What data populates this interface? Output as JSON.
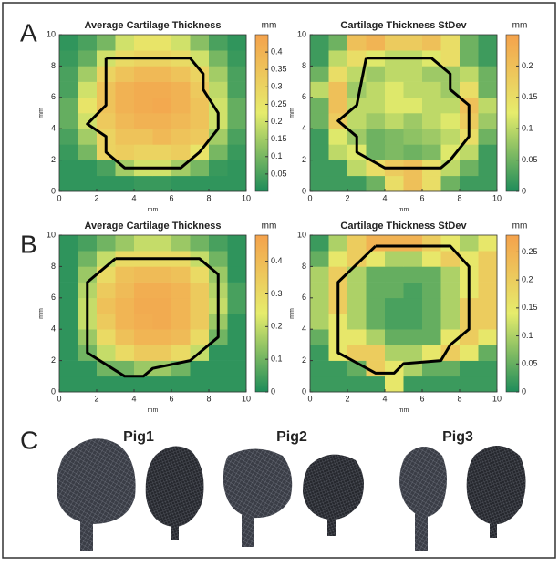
{
  "panel_labels": [
    "A",
    "B",
    "C"
  ],
  "chart_data": [
    {
      "type": "heatmap",
      "title": "Average Cartilage Thickness",
      "xlabel": "mm",
      "ylabel": "mm",
      "xlim": [
        0,
        10
      ],
      "ylim": [
        0,
        10
      ],
      "xticks": [
        0,
        2,
        4,
        6,
        8,
        10
      ],
      "yticks": [
        0,
        2,
        4,
        6,
        8,
        10
      ],
      "colormap": [
        "#1e8c5a",
        "#e6ec6c",
        "#f4a24c"
      ],
      "colorbar": {
        "label": "mm",
        "lim": [
          0,
          0.45
        ],
        "ticks": [
          0.05,
          0.1,
          0.15,
          0.2,
          0.25,
          0.3,
          0.35,
          0.4
        ]
      },
      "z": [
        [
          0.02,
          0.02,
          0.02,
          0.02,
          0.03,
          0.03,
          0.02,
          0.02,
          0.02,
          0.02
        ],
        [
          0.02,
          0.02,
          0.05,
          0.15,
          0.2,
          0.2,
          0.15,
          0.1,
          0.03,
          0.02
        ],
        [
          0.03,
          0.1,
          0.3,
          0.32,
          0.3,
          0.3,
          0.32,
          0.25,
          0.1,
          0.03
        ],
        [
          0.05,
          0.15,
          0.3,
          0.35,
          0.35,
          0.38,
          0.35,
          0.33,
          0.15,
          0.05
        ],
        [
          0.08,
          0.2,
          0.33,
          0.38,
          0.4,
          0.4,
          0.38,
          0.35,
          0.2,
          0.08
        ],
        [
          0.08,
          0.25,
          0.35,
          0.4,
          0.42,
          0.43,
          0.4,
          0.35,
          0.2,
          0.08
        ],
        [
          0.05,
          0.2,
          0.35,
          0.4,
          0.42,
          0.42,
          0.4,
          0.33,
          0.18,
          0.05
        ],
        [
          0.05,
          0.15,
          0.3,
          0.35,
          0.38,
          0.38,
          0.35,
          0.3,
          0.15,
          0.05
        ],
        [
          0.03,
          0.08,
          0.2,
          0.28,
          0.3,
          0.3,
          0.28,
          0.2,
          0.1,
          0.03
        ],
        [
          0.02,
          0.05,
          0.1,
          0.2,
          0.25,
          0.25,
          0.2,
          0.12,
          0.05,
          0.02
        ]
      ],
      "contour": {
        "color": "#000000",
        "x": [
          2.5,
          7,
          7.7,
          7.7,
          8.5,
          8.5,
          7.5,
          6.5,
          3.5,
          2.5,
          2.5,
          1.5,
          2.5,
          2.5
        ],
        "y": [
          8.5,
          8.5,
          7.5,
          6.5,
          5,
          4,
          2.5,
          1.5,
          1.5,
          2.5,
          3.5,
          4.3,
          5.5,
          8.5
        ]
      }
    },
    {
      "type": "heatmap",
      "title": "Cartilage Thickness StDev",
      "xlabel": "mm",
      "ylabel": "mm",
      "xlim": [
        0,
        10
      ],
      "ylim": [
        0,
        10
      ],
      "xticks": [
        0,
        2,
        4,
        6,
        8,
        10
      ],
      "yticks": [
        0,
        2,
        4,
        6,
        8,
        10
      ],
      "colormap": [
        "#1e8c5a",
        "#e6ec6c",
        "#f4a24c"
      ],
      "colorbar": {
        "label": "mm",
        "lim": [
          0,
          0.25
        ],
        "ticks": [
          0,
          0.05,
          0.1,
          0.15,
          0.2
        ]
      },
      "z": [
        [
          0.02,
          0.02,
          0.02,
          0.05,
          0.15,
          0.2,
          0.15,
          0.05,
          0.02,
          0.02
        ],
        [
          0.02,
          0.02,
          0.1,
          0.15,
          0.18,
          0.2,
          0.15,
          0.1,
          0.05,
          0.02
        ],
        [
          0.02,
          0.1,
          0.12,
          0.05,
          0.06,
          0.05,
          0.06,
          0.12,
          0.1,
          0.02
        ],
        [
          0.02,
          0.12,
          0.08,
          0.05,
          0.06,
          0.07,
          0.08,
          0.1,
          0.15,
          0.05
        ],
        [
          0.05,
          0.18,
          0.1,
          0.08,
          0.1,
          0.08,
          0.1,
          0.12,
          0.18,
          0.08
        ],
        [
          0.05,
          0.2,
          0.1,
          0.1,
          0.12,
          0.12,
          0.1,
          0.1,
          0.2,
          0.1
        ],
        [
          0.1,
          0.2,
          0.08,
          0.1,
          0.12,
          0.1,
          0.1,
          0.08,
          0.15,
          0.05
        ],
        [
          0.05,
          0.15,
          0.1,
          0.08,
          0.1,
          0.1,
          0.08,
          0.08,
          0.1,
          0.05
        ],
        [
          0.02,
          0.1,
          0.15,
          0.12,
          0.1,
          0.1,
          0.12,
          0.15,
          0.05,
          0.02
        ],
        [
          0.02,
          0.05,
          0.2,
          0.22,
          0.18,
          0.18,
          0.2,
          0.15,
          0.05,
          0.02
        ]
      ],
      "contour": {
        "color": "#000000",
        "x": [
          3,
          6.5,
          7.5,
          7.5,
          8.5,
          8.5,
          7.5,
          7,
          4,
          2.5,
          2.5,
          1.5,
          2.5,
          3
        ],
        "y": [
          8.5,
          8.5,
          7.5,
          6.5,
          5.5,
          3.5,
          2,
          1.5,
          1.5,
          2.5,
          3.5,
          4.5,
          5.5,
          8.5
        ]
      }
    },
    {
      "type": "heatmap",
      "title": "Average Cartilage Thickness",
      "xlabel": "mm",
      "ylabel": "mm",
      "xlim": [
        0,
        10
      ],
      "ylim": [
        0,
        10
      ],
      "xticks": [
        0,
        2,
        4,
        6,
        8,
        10
      ],
      "yticks": [
        0,
        2,
        4,
        6,
        8,
        10
      ],
      "colormap": [
        "#1e8c5a",
        "#e6ec6c",
        "#f4a24c"
      ],
      "colorbar": {
        "label": "mm",
        "lim": [
          0,
          0.48
        ],
        "ticks": [
          0,
          0.1,
          0.2,
          0.3,
          0.4
        ]
      },
      "z": [
        [
          0.02,
          0.02,
          0.02,
          0.02,
          0.02,
          0.02,
          0.02,
          0.02,
          0.02,
          0.02
        ],
        [
          0.02,
          0.02,
          0.1,
          0.1,
          0.15,
          0.15,
          0.1,
          0.02,
          0.02,
          0.02
        ],
        [
          0.02,
          0.1,
          0.2,
          0.3,
          0.35,
          0.35,
          0.3,
          0.2,
          0.02,
          0.02
        ],
        [
          0.02,
          0.15,
          0.3,
          0.38,
          0.42,
          0.42,
          0.4,
          0.3,
          0.1,
          0.02
        ],
        [
          0.02,
          0.2,
          0.35,
          0.42,
          0.44,
          0.45,
          0.42,
          0.35,
          0.15,
          0.02
        ],
        [
          0.02,
          0.2,
          0.38,
          0.42,
          0.45,
          0.45,
          0.42,
          0.35,
          0.2,
          0.05
        ],
        [
          0.02,
          0.18,
          0.35,
          0.4,
          0.44,
          0.44,
          0.42,
          0.35,
          0.18,
          0.05
        ],
        [
          0.02,
          0.15,
          0.3,
          0.38,
          0.4,
          0.4,
          0.38,
          0.3,
          0.15,
          0.02
        ],
        [
          0.02,
          0.1,
          0.2,
          0.3,
          0.3,
          0.3,
          0.3,
          0.2,
          0.1,
          0.02
        ],
        [
          0.02,
          0.05,
          0.1,
          0.15,
          0.2,
          0.2,
          0.15,
          0.1,
          0.05,
          0.02
        ]
      ],
      "contour": {
        "color": "#000000",
        "x": [
          3,
          7.5,
          8.5,
          8.5,
          7.5,
          7,
          5,
          4.5,
          3.5,
          1.5,
          1.5,
          3
        ],
        "y": [
          8.5,
          8.5,
          7.5,
          3.5,
          2.5,
          2,
          1.5,
          1,
          1,
          2.5,
          7,
          8.5
        ]
      }
    },
    {
      "type": "heatmap",
      "title": "Cartilage Thickness StDev",
      "xlabel": "mm",
      "ylabel": "mm",
      "xlim": [
        0,
        10
      ],
      "ylim": [
        0,
        10
      ],
      "xticks": [
        0,
        2,
        4,
        6,
        8,
        10
      ],
      "yticks": [
        0,
        2,
        4,
        6,
        8,
        10
      ],
      "colormap": [
        "#1e8c5a",
        "#e6ec6c",
        "#f4a24c"
      ],
      "colorbar": {
        "label": "mm",
        "lim": [
          0,
          0.28
        ],
        "ticks": [
          0,
          0.05,
          0.1,
          0.15,
          0.2,
          0.25
        ]
      },
      "z": [
        [
          0.02,
          0.02,
          0.02,
          0.02,
          0.15,
          0.02,
          0.02,
          0.02,
          0.02,
          0.02
        ],
        [
          0.02,
          0.02,
          0.05,
          0.2,
          0.15,
          0.1,
          0.05,
          0.05,
          0.02,
          0.02
        ],
        [
          0.02,
          0.15,
          0.2,
          0.2,
          0.1,
          0.1,
          0.15,
          0.2,
          0.15,
          0.05
        ],
        [
          0.05,
          0.15,
          0.15,
          0.1,
          0.05,
          0.05,
          0.05,
          0.15,
          0.2,
          0.15
        ],
        [
          0.1,
          0.15,
          0.1,
          0.05,
          0.03,
          0.03,
          0.05,
          0.1,
          0.2,
          0.2
        ],
        [
          0.1,
          0.2,
          0.1,
          0.05,
          0.03,
          0.03,
          0.05,
          0.1,
          0.2,
          0.2
        ],
        [
          0.1,
          0.2,
          0.1,
          0.05,
          0.05,
          0.03,
          0.05,
          0.1,
          0.15,
          0.2
        ],
        [
          0.1,
          0.2,
          0.1,
          0.05,
          0.05,
          0.05,
          0.05,
          0.1,
          0.15,
          0.2
        ],
        [
          0.05,
          0.15,
          0.2,
          0.15,
          0.1,
          0.1,
          0.15,
          0.2,
          0.15,
          0.2
        ],
        [
          0.02,
          0.1,
          0.2,
          0.25,
          0.25,
          0.25,
          0.2,
          0.15,
          0.1,
          0.15
        ]
      ],
      "contour": {
        "color": "#000000",
        "x": [
          3.5,
          7.5,
          8.5,
          8.5,
          7.5,
          7,
          5,
          4.5,
          3.5,
          1.5,
          1.5,
          3.5
        ],
        "y": [
          9.3,
          9.3,
          8,
          4,
          3,
          2,
          1.8,
          1.2,
          1.2,
          2.5,
          7,
          9.3
        ]
      }
    }
  ],
  "renders": {
    "labels": [
      "Pig1",
      "Pig2",
      "Pig3"
    ]
  }
}
